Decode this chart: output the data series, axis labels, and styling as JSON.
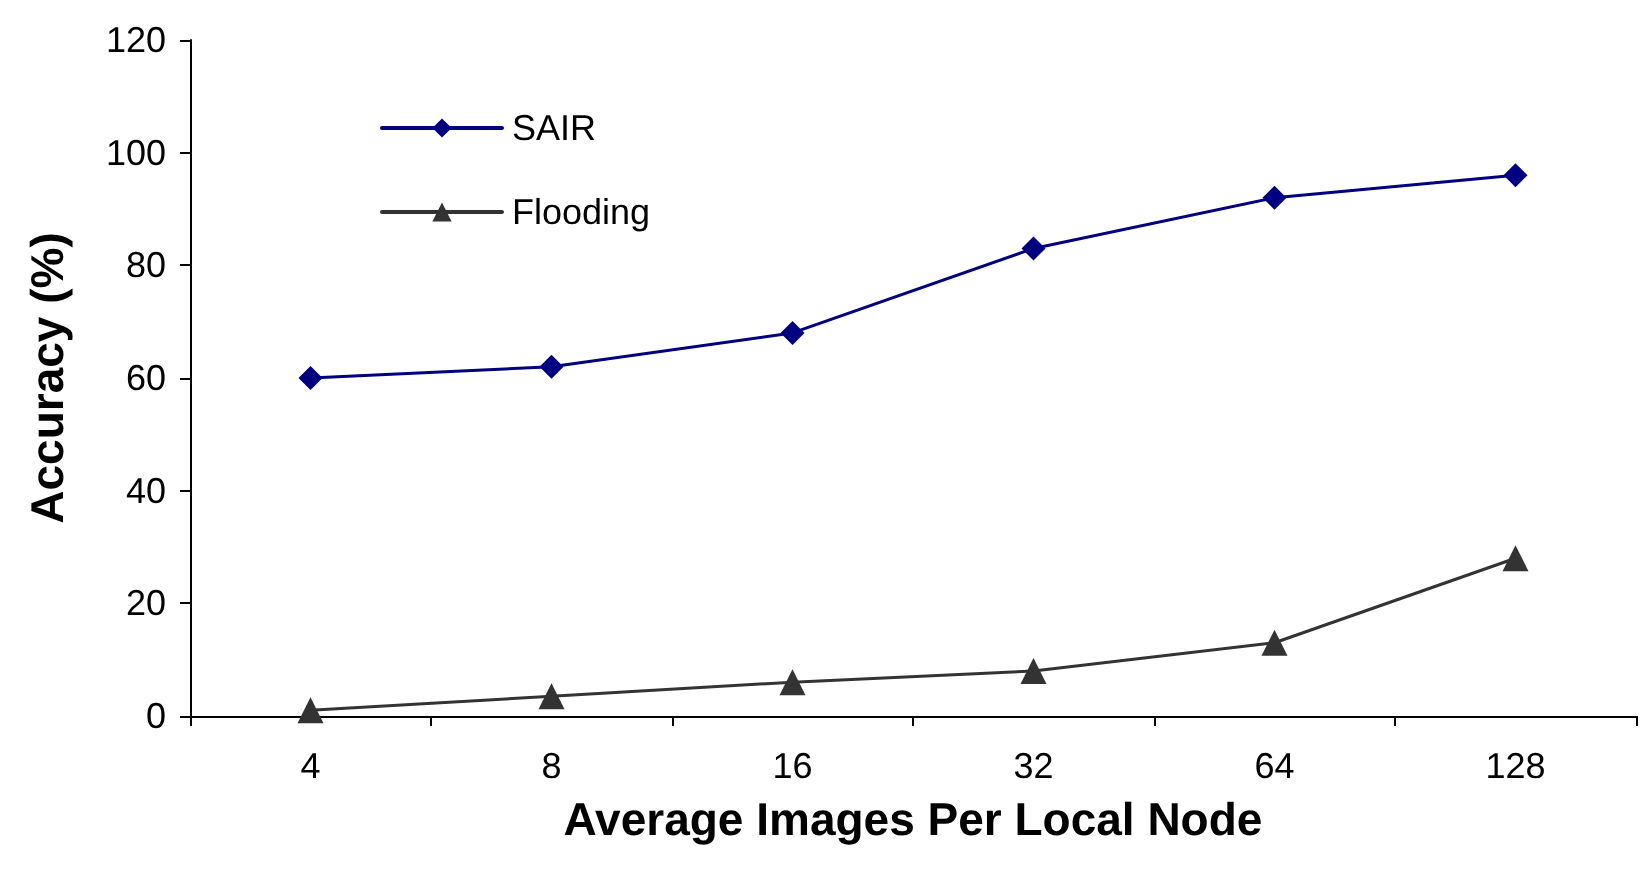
{
  "chart_data": {
    "type": "line",
    "xlabel": "Average Images Per Local Node",
    "ylabel": "Accuracy (%)",
    "categories": [
      "4",
      "8",
      "16",
      "32",
      "64",
      "128"
    ],
    "series": [
      {
        "name": "SAIR",
        "color": "#000080",
        "marker": "diamond",
        "values": [
          60,
          62,
          68,
          83,
          92,
          96
        ]
      },
      {
        "name": "Flooding",
        "color": "#333333",
        "marker": "triangle",
        "values": [
          1,
          3.5,
          6,
          8,
          13,
          28
        ]
      }
    ],
    "ylim": [
      0,
      120
    ],
    "yticks": [
      0,
      20,
      40,
      60,
      80,
      100,
      120
    ],
    "grid": false,
    "legend": "top left",
    "line_style": "solid"
  }
}
